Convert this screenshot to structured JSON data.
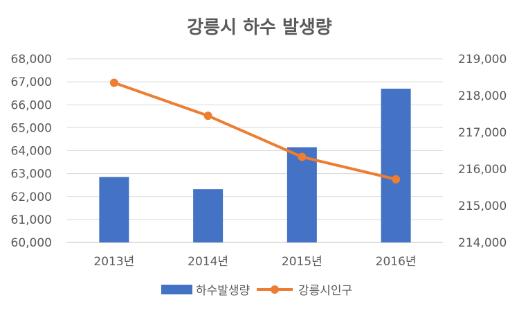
{
  "chart_data": {
    "type": "bar",
    "title": "강릉시 하수 발생량",
    "categories": [
      "2013년",
      "2014년",
      "2015년",
      "2016년"
    ],
    "series": [
      {
        "name": "하수발생량",
        "type": "bar",
        "axis": "left",
        "values": [
          62850,
          62320,
          64150,
          66700
        ],
        "color": "#4472C4"
      },
      {
        "name": "강릉시인구",
        "type": "line",
        "axis": "right",
        "values": [
          218350,
          217450,
          216330,
          215720
        ],
        "color": "#ED7D31"
      }
    ],
    "y_left": {
      "min": 60000,
      "max": 68000,
      "step": 1000,
      "tick_labels": [
        "60,000",
        "61,000",
        "62,000",
        "63,000",
        "64,000",
        "65,000",
        "66,000",
        "67,000",
        "68,000"
      ]
    },
    "y_right": {
      "min": 214000,
      "max": 219000,
      "step": 1000,
      "tick_labels": [
        "214,000",
        "215,000",
        "216,000",
        "217,000",
        "218,000",
        "219,000"
      ]
    },
    "grid": true,
    "legend_position": "bottom"
  }
}
